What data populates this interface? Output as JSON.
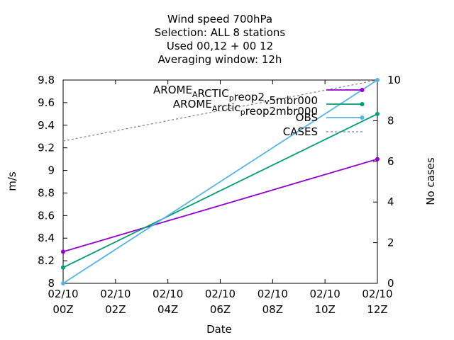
{
  "chart_data": {
    "type": "line",
    "title_lines": [
      "Wind speed 700hPa",
      "Selection: ALL       8 stations",
      "Used  00,12  + 00 12",
      "Averaging window: 12h"
    ],
    "xlabel": "Date",
    "ylabel": "m/s",
    "y2label": "No cases",
    "x_ticks": [
      {
        "value": 0,
        "line1": "02/10",
        "line2": "00Z"
      },
      {
        "value": 2,
        "line1": "02/10",
        "line2": "02Z"
      },
      {
        "value": 4,
        "line1": "02/10",
        "line2": "04Z"
      },
      {
        "value": 6,
        "line1": "02/10",
        "line2": "06Z"
      },
      {
        "value": 8,
        "line1": "02/10",
        "line2": "08Z"
      },
      {
        "value": 10,
        "line1": "02/10",
        "line2": "10Z"
      },
      {
        "value": 12,
        "line1": "02/10",
        "line2": "12Z"
      }
    ],
    "xlim": [
      0,
      12
    ],
    "ylim": [
      8.0,
      9.8
    ],
    "y_ticks": [
      "8",
      "8.2",
      "8.4",
      "8.6",
      "8.8",
      "9",
      "9.2",
      "9.4",
      "9.6",
      "9.8"
    ],
    "y2lim": [
      0,
      10
    ],
    "y2_ticks": [
      "0",
      "2",
      "4",
      "6",
      "8",
      "10"
    ],
    "legend_position": "top-right",
    "series": [
      {
        "name": "AROME_ARCTIC_preop2_v_5mbr000",
        "label_main": "AROME",
        "label_sub1": "A",
        "label_mid": "RCTIC",
        "label_sub2": "p",
        "label_mid2": "reop2",
        "label_sub3": "v",
        "label_end": "5mbr000",
        "color": "#9400d3",
        "axis": "y",
        "x": [
          0,
          12
        ],
        "y": [
          8.28,
          9.1
        ],
        "marker": true,
        "dashed": false
      },
      {
        "name": "AROME_Arctic_preop2mbr000",
        "label_main": "AROME",
        "label_sub1": "A",
        "label_mid": "rctic",
        "label_sub2": "p",
        "label_mid2": "reop2mbr000",
        "label_sub3": "",
        "label_end": "",
        "color": "#009e73",
        "axis": "y",
        "x": [
          0,
          12
        ],
        "y": [
          8.14,
          9.5
        ],
        "marker": true,
        "dashed": false
      },
      {
        "name": "OBS",
        "label_main": "OBS",
        "color": "#56b4e9",
        "axis": "y",
        "x": [
          0,
          12
        ],
        "y": [
          8.0,
          9.8
        ],
        "marker": true,
        "dashed": false
      },
      {
        "name": "CASES",
        "label_main": "CASES",
        "color": "#808080",
        "axis": "y2",
        "x": [
          0,
          12
        ],
        "y": [
          7.0,
          10.0
        ],
        "marker": false,
        "dashed": true
      }
    ]
  }
}
